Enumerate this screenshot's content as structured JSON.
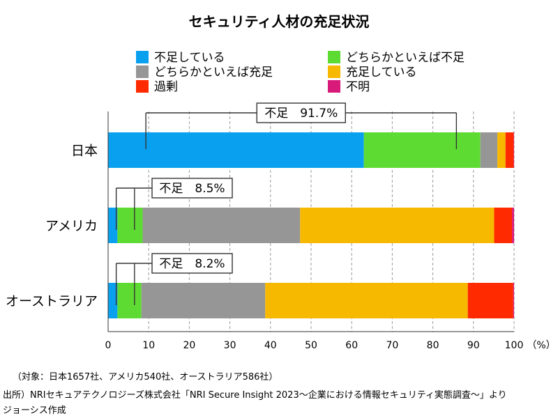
{
  "chart_data": {
    "type": "bar",
    "orientation": "horizontal",
    "stacked": true,
    "title": "セキュリティ人材の充足状況",
    "categories": [
      "日本",
      "アメリカ",
      "オーストラリア"
    ],
    "series": [
      {
        "name": "不足している",
        "color": "#0AA0F0",
        "values": [
          63.0,
          2.3,
          2.3
        ]
      },
      {
        "name": "どちらかといえば不足",
        "color": "#5EDB33",
        "values": [
          28.7,
          6.2,
          5.9
        ]
      },
      {
        "name": "どちらかといえば充足",
        "color": "#969696",
        "values": [
          4.2,
          38.8,
          30.5
        ]
      },
      {
        "name": "充足している",
        "color": "#F7B800",
        "values": [
          2.0,
          47.8,
          49.9
        ]
      },
      {
        "name": "過剰",
        "color": "#FF2A00",
        "values": [
          2.0,
          4.4,
          11.2
        ]
      },
      {
        "name": "不明",
        "color": "#D81B7A",
        "values": [
          0.1,
          0.5,
          0.2
        ]
      }
    ],
    "xlim": [
      0,
      100
    ],
    "xticks": [
      0,
      10,
      20,
      30,
      40,
      50,
      60,
      70,
      80,
      90,
      100
    ],
    "x_unit": "（%）",
    "grid": "vertical-dashed",
    "legend_position": "top",
    "annotations": [
      {
        "category": "日本",
        "label": "不足　91.7%",
        "from": 9.3,
        "to": 85.8
      },
      {
        "category": "アメリカ",
        "label": "不足　8.5%",
        "from": 2.0,
        "to": 6.5
      },
      {
        "category": "オーストラリア",
        "label": "不足　8.2%",
        "from": 2.0,
        "to": 6.5
      }
    ]
  },
  "notes": {
    "sample": "（対象：日本1657社、アメリカ540社、オーストラリア586社）",
    "source_line1": "出所）NRIセキュアテクノロジーズ株式会社「NRI Secure Insight 2023～企業における情報セキュリティ実態調査～」より",
    "source_line2": "ジョーシス作成"
  }
}
